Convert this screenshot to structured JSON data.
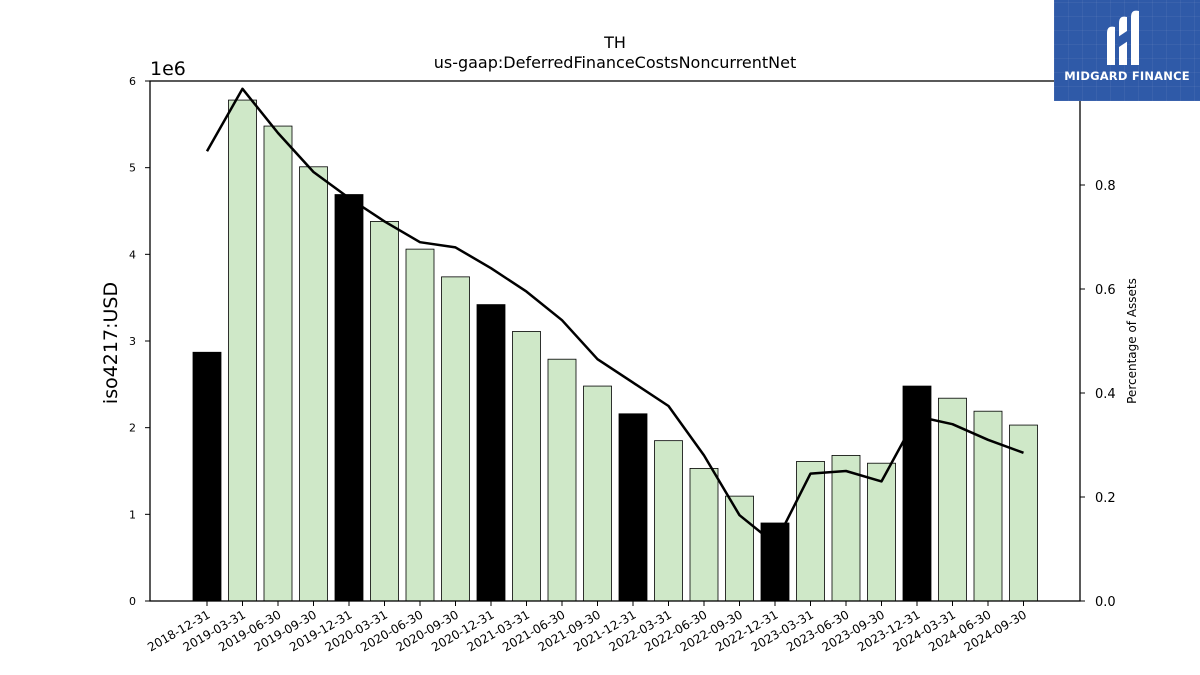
{
  "chart_data": {
    "type": "bar",
    "title_line1": "TH",
    "title_line2": "us-gaap:DeferredFinanceCostsNoncurrentNet",
    "ylabel": "iso4217:USD",
    "y_offset_label": "1e6",
    "y2label": "Percentage of Assets",
    "ylim": [
      0,
      6000000
    ],
    "y_ticks": [
      0,
      1,
      2,
      3,
      4,
      5,
      6
    ],
    "y_tick_labels": [
      "0",
      "1",
      "2",
      "3",
      "4",
      "5",
      "6"
    ],
    "y2lim": [
      0,
      1.0
    ],
    "y2_ticks": [
      0.0,
      0.2,
      0.4,
      0.6,
      0.8,
      1.0
    ],
    "y2_tick_labels": [
      "0.0",
      "0.2",
      "0.4",
      "0.6",
      "0.8",
      "1.0"
    ],
    "categories": [
      "2018-12-31",
      "2019-03-31",
      "2019-06-30",
      "2019-09-30",
      "2019-12-31",
      "2020-03-31",
      "2020-06-30",
      "2020-09-30",
      "2020-12-31",
      "2021-03-31",
      "2021-06-30",
      "2021-09-30",
      "2021-12-31",
      "2022-03-31",
      "2022-06-30",
      "2022-09-30",
      "2022-12-31",
      "2023-03-31",
      "2023-06-30",
      "2023-09-30",
      "2023-12-31",
      "2024-03-31",
      "2024-06-30",
      "2024-09-30"
    ],
    "values": [
      2870000,
      5780000,
      5480000,
      5010000,
      4690000,
      4380000,
      4060000,
      3740000,
      3420000,
      3110000,
      2790000,
      2480000,
      2160000,
      1850000,
      1530000,
      1210000,
      900000,
      1610000,
      1680000,
      1590000,
      2480000,
      2340000,
      2190000,
      2030000
    ],
    "bar_highlight": [
      true,
      false,
      false,
      false,
      true,
      false,
      false,
      false,
      true,
      false,
      false,
      false,
      true,
      false,
      false,
      false,
      true,
      false,
      false,
      false,
      true,
      false,
      false,
      false
    ],
    "line_series": {
      "axis": "secondary",
      "values": [
        0.865,
        0.985,
        0.9,
        0.825,
        0.775,
        0.73,
        0.69,
        0.68,
        0.64,
        0.595,
        0.54,
        0.465,
        0.42,
        0.375,
        0.28,
        0.165,
        0.11,
        0.245,
        0.25,
        0.23,
        0.355,
        0.34,
        0.31,
        0.285
      ]
    },
    "colors": {
      "bar_highlight": "#000000",
      "bar_normal": "#cfe8c8",
      "bar_edge": "#000000",
      "line": "#000000"
    },
    "grid": false,
    "legend": "none"
  },
  "logo": {
    "text": "MIDGARD FINANCE",
    "background": "#2f5aa8"
  }
}
